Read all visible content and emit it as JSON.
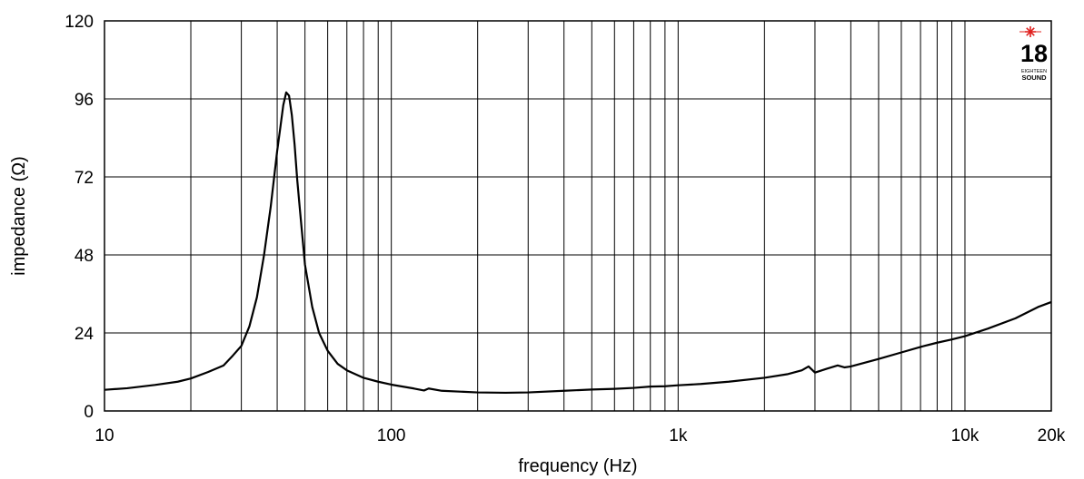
{
  "chart_data": {
    "type": "line",
    "title": "",
    "xlabel": "frequency (Hz)",
    "ylabel": "impedance (Ω)",
    "x_scale": "log",
    "xlim": [
      10,
      20000
    ],
    "ylim": [
      0,
      120
    ],
    "grid": true,
    "x_ticks": [
      10,
      100,
      1000,
      10000,
      20000
    ],
    "x_tick_labels": [
      "10",
      "100",
      "1k",
      "10k",
      "20k"
    ],
    "y_ticks": [
      0,
      24,
      48,
      72,
      96,
      120
    ],
    "y_tick_labels": [
      "0",
      "24",
      "48",
      "72",
      "96",
      "120"
    ],
    "series": [
      {
        "x": [
          10,
          12,
          15,
          18,
          20,
          23,
          26,
          28,
          30,
          32,
          34,
          36,
          38,
          40,
          41,
          42,
          43,
          44,
          45,
          46,
          47,
          48,
          50,
          53,
          56,
          60,
          65,
          70,
          80,
          90,
          100,
          120,
          130,
          135,
          150,
          200,
          250,
          300,
          400,
          500,
          600,
          700,
          800,
          900,
          1000,
          1200,
          1500,
          2000,
          2400,
          2700,
          2850,
          3000,
          3300,
          3600,
          3800,
          4000,
          5000,
          6000,
          7000,
          8000,
          9000,
          10000,
          12000,
          15000,
          18000,
          20000
        ],
        "y": [
          6.5,
          7,
          8,
          9,
          10,
          12,
          14,
          17,
          20,
          26,
          35,
          48,
          63,
          80,
          87,
          94,
          98,
          97,
          91,
          82,
          71,
          62,
          45,
          32,
          24,
          18.5,
          14.5,
          12.5,
          10.2,
          9.0,
          8.1,
          6.9,
          6.3,
          6.9,
          6.2,
          5.7,
          5.6,
          5.7,
          6.2,
          6.6,
          6.8,
          7.1,
          7.5,
          7.6,
          7.9,
          8.3,
          9.0,
          10.2,
          11.3,
          12.5,
          13.7,
          11.8,
          13.0,
          14.0,
          13.4,
          13.7,
          16.0,
          18.0,
          19.7,
          21.0,
          22.0,
          23.0,
          25.3,
          28.5,
          32.0,
          33.5
        ]
      }
    ]
  },
  "logo": {
    "number": "18",
    "line1": "EIGHTEEN",
    "line2": "SOUND",
    "star_color": "#e0201e"
  }
}
